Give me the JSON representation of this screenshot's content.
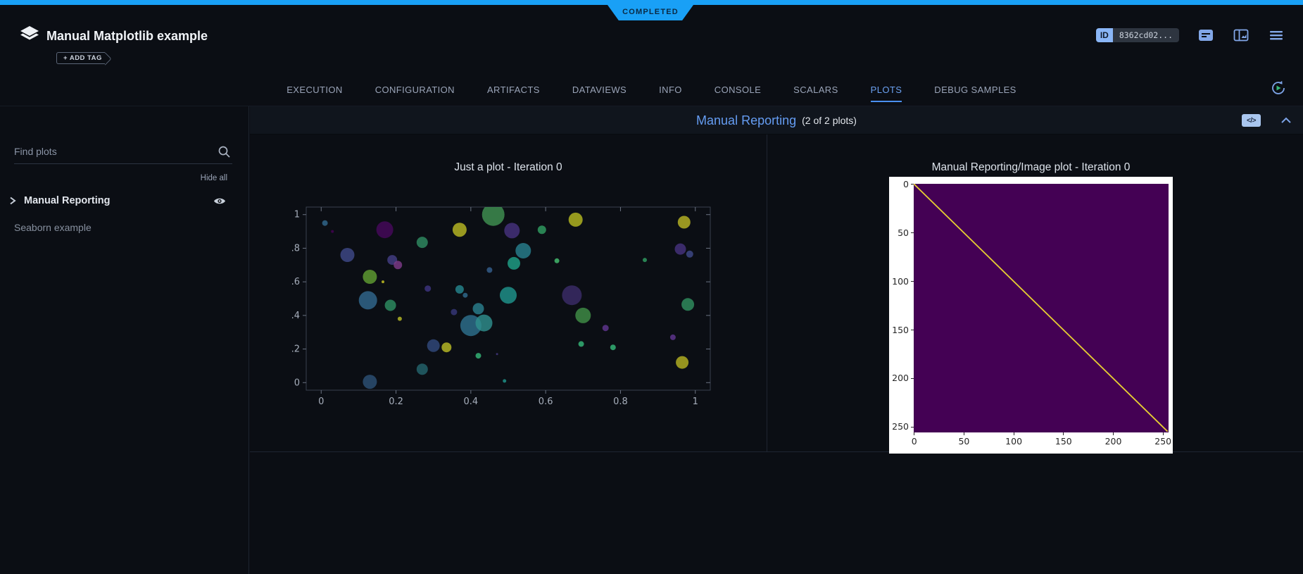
{
  "status": {
    "label": "COMPLETED"
  },
  "header": {
    "app_title": "Manual Matplotlib example",
    "add_tag": "+ ADD TAG",
    "id_badge": {
      "label": "ID",
      "value": "8362cd02..."
    },
    "icons": [
      "task-card-icon",
      "split-panel-icon",
      "menu-icon"
    ]
  },
  "tabs": {
    "items": [
      {
        "label": "EXECUTION"
      },
      {
        "label": "CONFIGURATION"
      },
      {
        "label": "ARTIFACTS"
      },
      {
        "label": "DATAVIEWS"
      },
      {
        "label": "INFO"
      },
      {
        "label": "CONSOLE"
      },
      {
        "label": "SCALARS"
      },
      {
        "label": "PLOTS"
      },
      {
        "label": "DEBUG SAMPLES"
      }
    ],
    "active": "PLOTS"
  },
  "sidebar": {
    "search_placeholder": "Find plots",
    "hide_all": "Hide all",
    "groups": [
      {
        "label": "Manual Reporting",
        "expanded": false
      }
    ],
    "items": [
      {
        "label": "Seaborn example"
      }
    ]
  },
  "section": {
    "title": "Manual Reporting",
    "count": "(2 of 2 plots)",
    "code_glyph": "</>"
  },
  "colors": {
    "accent_blue": "#19a0f6",
    "active_tab_blue": "#6ba1f1",
    "link_blue": "#659df3",
    "status_text": "#0a2a44",
    "image_background": "#440154",
    "diagonal_line": "#e7cf32"
  },
  "chart_data": [
    {
      "type": "scatter",
      "title": "Just a plot - Iteration 0",
      "xlabel": "",
      "ylabel": "",
      "xlim": [
        -0.04,
        1.04
      ],
      "ylim": [
        -0.045,
        1.045
      ],
      "grid": false,
      "xticks": {
        "values": [
          0,
          0.2,
          0.4,
          0.6,
          0.8,
          1
        ],
        "labels": [
          "0",
          "0.2",
          "0.4",
          "0.6",
          "0.8",
          "1"
        ]
      },
      "yticks": {
        "values": [
          0,
          0.2,
          0.4,
          0.6,
          0.8,
          1
        ],
        "labels": [
          "0",
          "0.2",
          "0.4",
          "0.6",
          "0.8",
          "1"
        ]
      },
      "point_columns": [
        "x",
        "y",
        "radius_px",
        "color"
      ],
      "points": [
        [
          0.01,
          0.95,
          4,
          "#31688e"
        ],
        [
          0.03,
          0.9,
          2,
          "#440154"
        ],
        [
          0.17,
          0.91,
          12,
          "#46085c"
        ],
        [
          0.07,
          0.76,
          10,
          "#3e4989"
        ],
        [
          0.27,
          0.835,
          8,
          "#2e8b62"
        ],
        [
          0.37,
          0.91,
          10,
          "#b8b823"
        ],
        [
          0.46,
          1.0,
          16,
          "#3f9152"
        ],
        [
          0.51,
          0.905,
          11,
          "#46327e"
        ],
        [
          0.59,
          0.91,
          6,
          "#2f9e62"
        ],
        [
          0.54,
          0.785,
          11,
          "#277f8e"
        ],
        [
          0.515,
          0.71,
          9,
          "#1fa187"
        ],
        [
          0.45,
          0.67,
          4,
          "#355f8d"
        ],
        [
          0.63,
          0.725,
          3.5,
          "#44bf70"
        ],
        [
          0.19,
          0.73,
          7,
          "#433e85"
        ],
        [
          0.205,
          0.7,
          6,
          "#7e3b8a"
        ],
        [
          0.13,
          0.63,
          10,
          "#5f9e32"
        ],
        [
          0.165,
          0.6,
          2,
          "#c8c623"
        ],
        [
          0.285,
          0.56,
          4.5,
          "#3d3580"
        ],
        [
          0.37,
          0.555,
          6,
          "#25858e"
        ],
        [
          0.385,
          0.52,
          3.5,
          "#2f6b8e"
        ],
        [
          0.125,
          0.49,
          13,
          "#31688e"
        ],
        [
          0.185,
          0.46,
          8,
          "#2d8e62"
        ],
        [
          0.355,
          0.42,
          4.5,
          "#363779"
        ],
        [
          0.42,
          0.44,
          8,
          "#2a7f8e"
        ],
        [
          0.5,
          0.52,
          12,
          "#1f948c"
        ],
        [
          0.67,
          0.52,
          14,
          "#3b2c69"
        ],
        [
          0.7,
          0.4,
          11,
          "#3f8f47"
        ],
        [
          0.76,
          0.325,
          4.5,
          "#5f3690"
        ],
        [
          0.4,
          0.34,
          15,
          "#2d708e"
        ],
        [
          0.435,
          0.355,
          12,
          "#2e8f8e"
        ],
        [
          0.3,
          0.22,
          9,
          "#31497c"
        ],
        [
          0.335,
          0.21,
          7,
          "#b9bb26"
        ],
        [
          0.21,
          0.38,
          3,
          "#b8bb26"
        ],
        [
          0.42,
          0.16,
          4,
          "#35b779"
        ],
        [
          0.47,
          0.17,
          1.5,
          "#443983"
        ],
        [
          0.27,
          0.08,
          8,
          "#23646c"
        ],
        [
          0.13,
          0.005,
          10,
          "#2c5175"
        ],
        [
          0.49,
          0.01,
          2.5,
          "#1f958b"
        ],
        [
          0.68,
          0.97,
          10,
          "#b5b821"
        ],
        [
          0.97,
          0.955,
          9,
          "#b8b525"
        ],
        [
          0.96,
          0.795,
          8,
          "#46327e"
        ],
        [
          0.985,
          0.765,
          5,
          "#3e4989"
        ],
        [
          0.98,
          0.465,
          9,
          "#2f8f5f"
        ],
        [
          0.965,
          0.12,
          9,
          "#b5b222"
        ],
        [
          0.695,
          0.23,
          4,
          "#35b779"
        ],
        [
          0.78,
          0.21,
          4,
          "#35b779"
        ],
        [
          0.94,
          0.27,
          4,
          "#5f3690"
        ],
        [
          0.865,
          0.73,
          3,
          "#2f9e62"
        ]
      ]
    },
    {
      "type": "image",
      "title": "Manual Reporting/Image plot - Iteration 0",
      "figure_background": "#ffffff",
      "xticks": {
        "values": [
          0,
          50,
          100,
          150,
          200,
          250
        ],
        "labels": [
          "0",
          "50",
          "100",
          "150",
          "200",
          "250"
        ]
      },
      "yticks": {
        "values": [
          0,
          50,
          100,
          150,
          200,
          250
        ],
        "labels": [
          "0",
          "50",
          "100",
          "150",
          "200",
          "250"
        ]
      },
      "image": {
        "size": [
          256,
          256
        ],
        "background": "#440154",
        "diagonal": {
          "from": [
            0,
            0
          ],
          "to": [
            255,
            255
          ],
          "color": "#e7cf32",
          "width": 1.3
        }
      }
    }
  ]
}
